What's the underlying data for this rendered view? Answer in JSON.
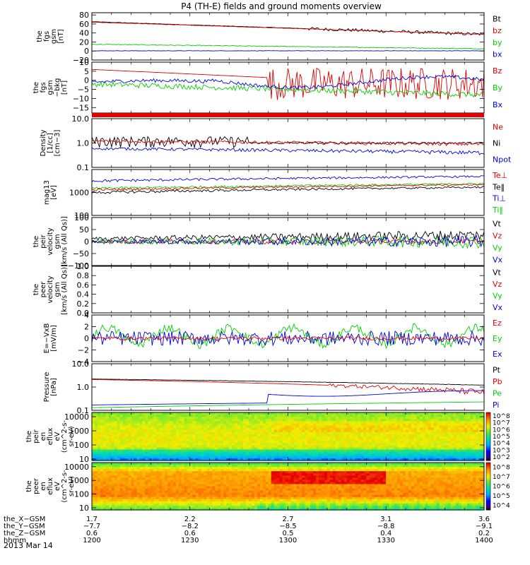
{
  "title": "P4 (TH-E) fields and ground moments overview",
  "date": "2013 Mar 14",
  "colors": {
    "black": "#000000",
    "red": "#e00000",
    "green": "#00d000",
    "blue": "#0000e0"
  },
  "chart_data": [
    {
      "id": "p1",
      "type": "line",
      "ylabel": [
        "the",
        "fgs",
        "gsm",
        "[nT]"
      ],
      "ylim": [
        -20,
        85
      ],
      "yticks": [
        -20,
        0,
        20,
        40,
        60,
        80
      ],
      "ytick_labels": [
        "−20",
        "0",
        "20",
        "40",
        "60",
        "80"
      ],
      "legend": [
        {
          "name": "Bt",
          "color": "black"
        },
        {
          "name": "bz",
          "color": "red"
        },
        {
          "name": "by",
          "color": "green"
        },
        {
          "name": "bx",
          "color": "blue"
        }
      ]
    },
    {
      "id": "p2",
      "type": "line",
      "ylabel": [
        "the",
        "fgs",
        "gsm",
        "−bkg",
        "[nT]"
      ],
      "ylim": [
        -18,
        10
      ],
      "yticks": [
        -15,
        -10,
        -5,
        0,
        5,
        10
      ],
      "ytick_labels": [
        "−15",
        "−10",
        "−5",
        "0",
        "5",
        "10"
      ],
      "legend": [
        {
          "name": "Bz",
          "color": "red"
        },
        {
          "name": "By",
          "color": "green"
        },
        {
          "name": "Bx",
          "color": "blue"
        }
      ]
    },
    {
      "id": "p3",
      "type": "line",
      "ylabel": [
        "Density",
        "[1/cc]",
        "[cm−3]"
      ],
      "scale": "log",
      "ylim": [
        0.1,
        10
      ],
      "yticks": [
        0.1,
        1,
        10
      ],
      "ytick_labels": [
        "0.1",
        "1.0",
        "10.0"
      ],
      "legend": [
        {
          "name": "Ne",
          "color": "red"
        },
        {
          "name": "Ni",
          "color": "black"
        },
        {
          "name": "Npot",
          "color": "blue"
        }
      ]
    },
    {
      "id": "p4",
      "type": "line",
      "ylabel": [
        "mag13",
        "[eV]"
      ],
      "scale": "log",
      "ylim": [
        100,
        10000
      ],
      "yticks": [
        100,
        1000
      ],
      "ytick_labels": [
        "100",
        "1000"
      ],
      "legend": [
        {
          "name": "Te⊥",
          "color": "red"
        },
        {
          "name": "Te‖",
          "color": "black"
        },
        {
          "name": "Ti⊥",
          "color": "blue"
        },
        {
          "name": "Ti‖",
          "color": "green"
        }
      ]
    },
    {
      "id": "p5",
      "type": "line",
      "ylabel": [
        "the",
        "peir",
        "velocity",
        "gsm",
        "[km/s (All Qs)]"
      ],
      "ylim": [
        -100,
        100
      ],
      "yticks": [
        -100,
        -50,
        0,
        50,
        100
      ],
      "ytick_labels": [
        "−100",
        "−50",
        "0",
        "50",
        "100"
      ],
      "legend": [
        {
          "name": "Vt",
          "color": "black"
        },
        {
          "name": "Vz",
          "color": "red"
        },
        {
          "name": "Vy",
          "color": "green"
        },
        {
          "name": "Vx",
          "color": "blue"
        }
      ]
    },
    {
      "id": "p6",
      "type": "line",
      "ylabel": [
        "the",
        "peer",
        "velocity",
        "gsm",
        "[km/s (All Qs)]"
      ],
      "ylim": [
        0,
        1
      ],
      "yticks": [
        0,
        0.2,
        0.4,
        0.6,
        0.8,
        1.0
      ],
      "ytick_labels": [
        "0.0",
        "0.2",
        "0.4",
        "0.6",
        "0.8",
        "1.0"
      ],
      "legend": [
        {
          "name": "Vt",
          "color": "black"
        },
        {
          "name": "Vz",
          "color": "red"
        },
        {
          "name": "Vy",
          "color": "green"
        },
        {
          "name": "Vx",
          "color": "blue"
        }
      ]
    },
    {
      "id": "p7",
      "type": "line",
      "ylabel": [
        "E=−VxB",
        "[mV/m]"
      ],
      "ylim": [
        -4,
        4
      ],
      "yticks": [
        -4,
        -2,
        0,
        2,
        4
      ],
      "ytick_labels": [
        "−4",
        "−2",
        "0",
        "2",
        "4"
      ],
      "legend": [
        {
          "name": "Ez",
          "color": "red"
        },
        {
          "name": "Ey",
          "color": "green"
        },
        {
          "name": "Ex",
          "color": "blue"
        }
      ]
    },
    {
      "id": "p8",
      "type": "line",
      "ylabel": [
        "Pressure",
        "[nPa]"
      ],
      "scale": "log",
      "ylim": [
        0.1,
        10
      ],
      "yticks": [
        0.1,
        1,
        10
      ],
      "ytick_labels": [
        "0.1",
        "1.0",
        "10.0"
      ],
      "legend": [
        {
          "name": "Pt",
          "color": "black"
        },
        {
          "name": "Pb",
          "color": "red"
        },
        {
          "name": "Pe",
          "color": "green"
        },
        {
          "name": "Pi",
          "color": "blue"
        }
      ]
    },
    {
      "id": "p9",
      "type": "heatmap",
      "ylabel": [
        "the",
        "peir",
        "en",
        "eflux",
        "eV",
        "(cm^2-s-",
        "sr-eV)"
      ],
      "scale": "log",
      "ylim": [
        8,
        20000
      ],
      "yticks": [
        10,
        100,
        1000,
        10000
      ],
      "ytick_labels": [
        "10",
        "100",
        "1000",
        "10000"
      ],
      "colorbar": {
        "ticks": [
          "10^2",
          "10^3",
          "10^4",
          "10^5",
          "10^6",
          "10^7",
          "10^8"
        ],
        "range": [
          100,
          100000000
        ]
      }
    },
    {
      "id": "p10",
      "type": "heatmap",
      "ylabel": [
        "the",
        "peer",
        "en",
        "eflux",
        "eV",
        "(cm^2-s-",
        "sr-eV)"
      ],
      "scale": "log",
      "ylim": [
        7,
        20000
      ],
      "yticks": [
        10,
        100,
        1000,
        10000
      ],
      "ytick_labels": [
        "10",
        "100",
        "1000",
        "10000"
      ],
      "colorbar": {
        "ticks": [
          "10^4",
          "10^5",
          "10^6",
          "10^7",
          "10^8"
        ],
        "range": [
          3000,
          100000000
        ]
      }
    }
  ],
  "xaxis": {
    "range": [
      "1200",
      "1400"
    ],
    "rows": [
      {
        "label": "the_X−GSM",
        "values": [
          "1.7",
          "2.2",
          "2.7",
          "3.1",
          "3.6"
        ]
      },
      {
        "label": "the_Y−GSM",
        "values": [
          "−7.7",
          "−8.2",
          "−8.5",
          "−8.8",
          "−9.1"
        ]
      },
      {
        "label": "the_Z−GSM",
        "values": [
          "0.6",
          "0.6",
          "0.5",
          "0.4",
          "0.2"
        ]
      },
      {
        "label": "hhmm",
        "values": [
          "1200",
          "1230",
          "1300",
          "1330",
          "1400"
        ]
      }
    ]
  }
}
